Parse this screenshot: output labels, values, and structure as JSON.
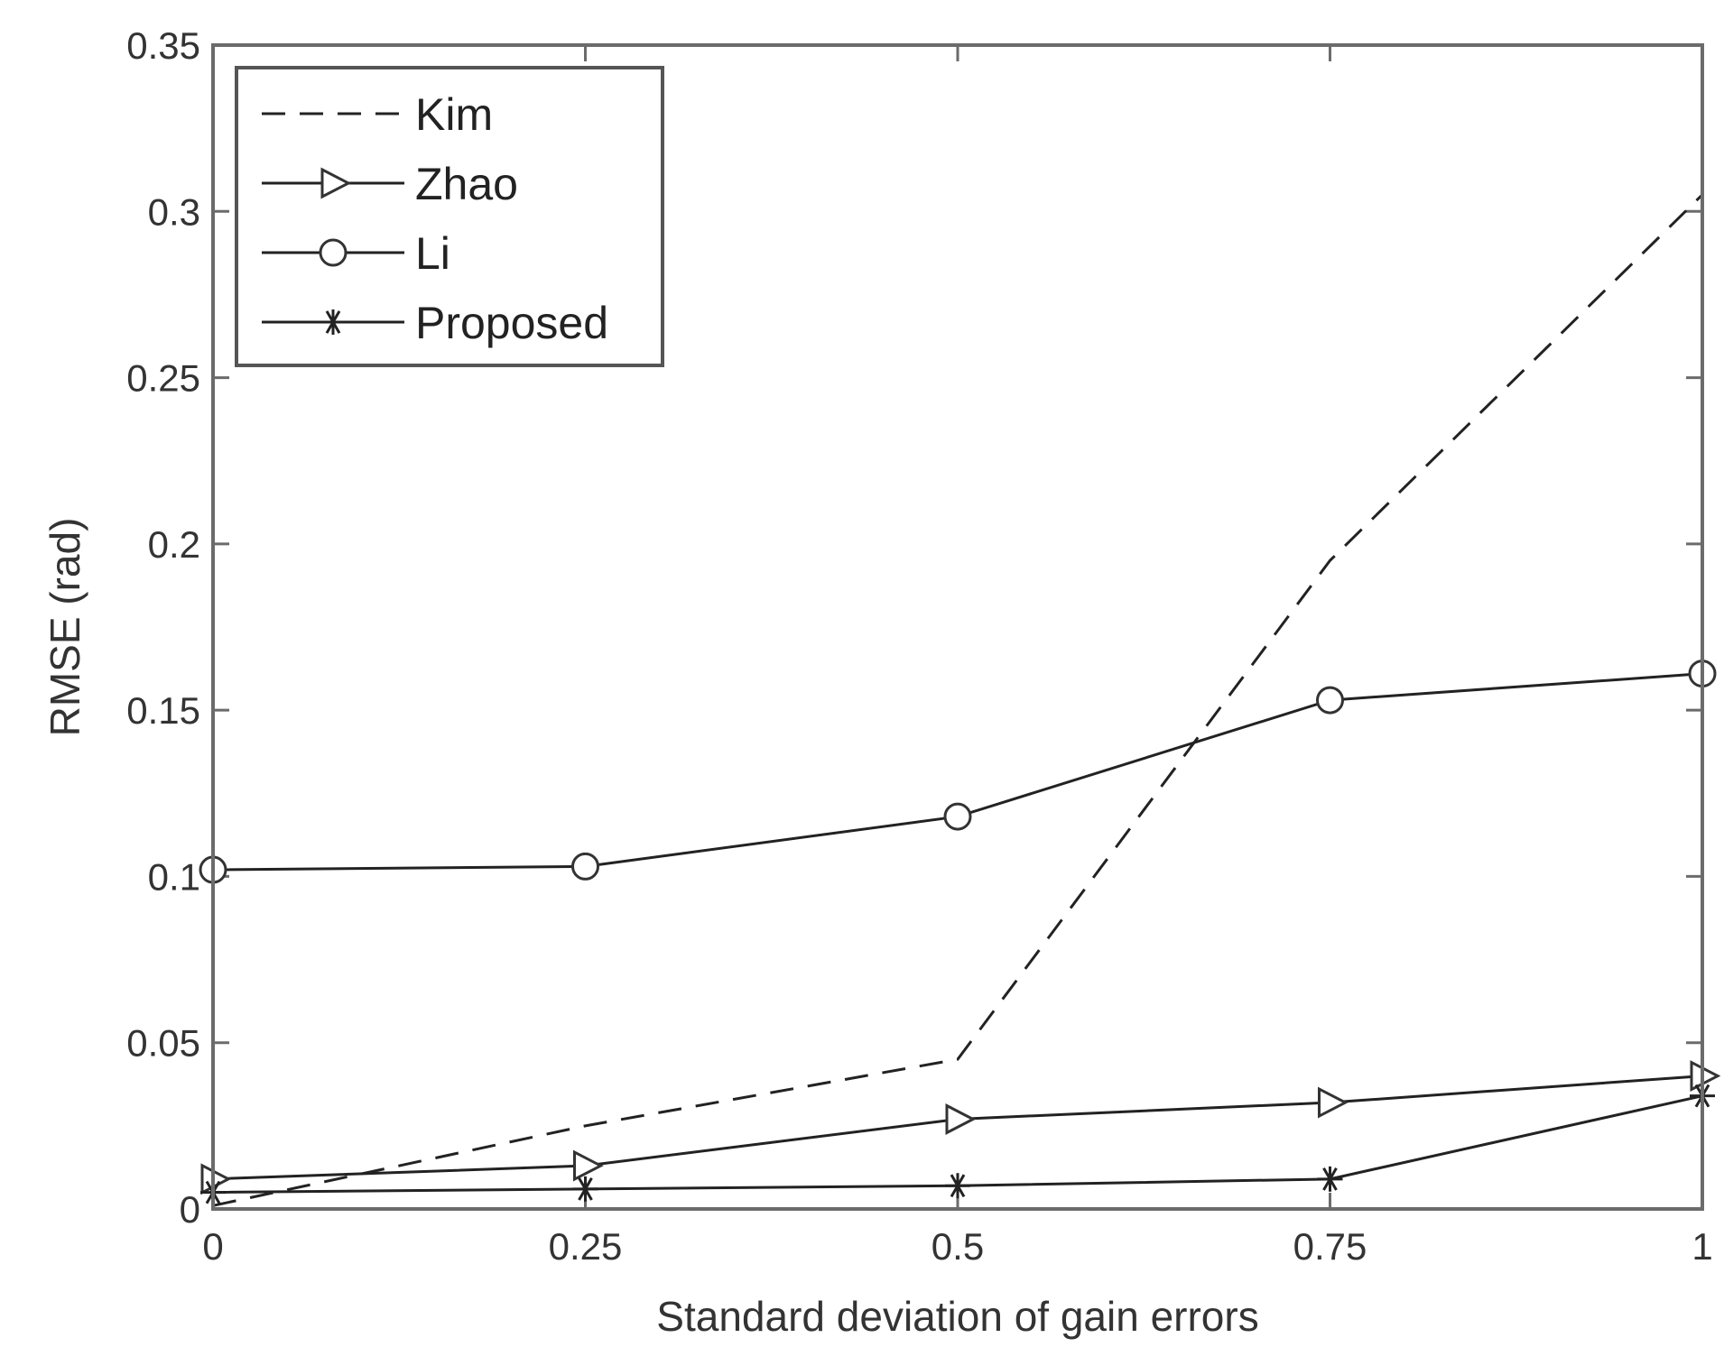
{
  "chart_data": {
    "type": "line",
    "xlabel": "Standard deviation of gain errors",
    "ylabel": "RMSE (rad)",
    "xlim": [
      0,
      1
    ],
    "ylim": [
      0,
      0.35
    ],
    "xticks": [
      "0",
      "0.25",
      "0.5",
      "0.75",
      "1"
    ],
    "yticks": [
      "0",
      "0.05",
      "0.1",
      "0.15",
      "0.2",
      "0.25",
      "0.3",
      "0.35"
    ],
    "grid": false,
    "legend_position": "top-left",
    "x": [
      0,
      0.25,
      0.5,
      0.75,
      1
    ],
    "series": [
      {
        "name": "Kim",
        "style": "dashed",
        "marker": "none",
        "values": [
          0.001,
          0.025,
          0.045,
          0.195,
          0.305
        ]
      },
      {
        "name": "Zhao",
        "style": "solid",
        "marker": "triangle-right",
        "values": [
          0.009,
          0.013,
          0.027,
          0.032,
          0.04
        ]
      },
      {
        "name": "Li",
        "style": "solid",
        "marker": "circle",
        "values": [
          0.102,
          0.103,
          0.118,
          0.153,
          0.161
        ]
      },
      {
        "name": "Proposed",
        "style": "solid",
        "marker": "star",
        "values": [
          0.005,
          0.006,
          0.007,
          0.009,
          0.034
        ]
      }
    ]
  }
}
